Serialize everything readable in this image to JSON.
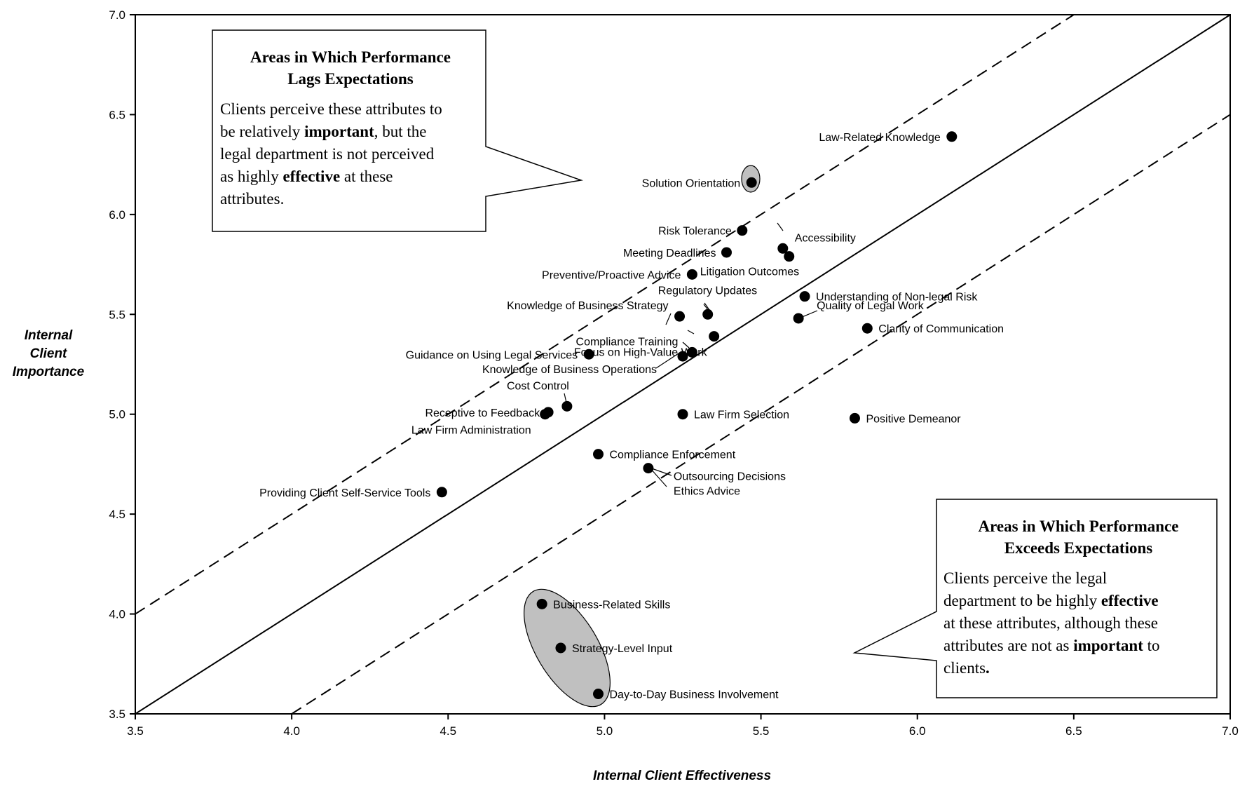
{
  "chart_data": {
    "type": "scatter",
    "xlabel": "Internal Client Effectiveness",
    "ylabel": "Internal Client Importance",
    "xlim": [
      3.5,
      7.0
    ],
    "ylim": [
      3.5,
      7.0
    ],
    "x_ticks": [
      "3.5",
      "4.0",
      "4.5",
      "5.0",
      "5.5",
      "6.0",
      "6.5",
      "7.0"
    ],
    "y_ticks": [
      "3.5",
      "4.0",
      "4.5",
      "5.0",
      "5.5",
      "6.0",
      "6.5",
      "7.0"
    ],
    "grid": false,
    "legend": "none",
    "reference_lines": [
      {
        "style": "solid",
        "from": [
          3.5,
          3.5
        ],
        "to": [
          7.0,
          7.0
        ]
      },
      {
        "style": "dashed",
        "from": [
          3.5,
          4.0
        ],
        "to": [
          6.5,
          7.0
        ]
      },
      {
        "style": "dashed",
        "from": [
          4.0,
          3.5
        ],
        "to": [
          7.0,
          6.5
        ]
      }
    ],
    "points": [
      {
        "label": "Law-Related Knowledge",
        "x": 6.11,
        "y": 6.39
      },
      {
        "label": "Solution Orientation",
        "x": 5.47,
        "y": 6.16
      },
      {
        "label": "Risk Tolerance",
        "x": 5.44,
        "y": 5.92
      },
      {
        "label": "Accessibility",
        "x": 5.57,
        "y": 5.83
      },
      {
        "label": "Meeting Deadlines",
        "x": 5.39,
        "y": 5.81
      },
      {
        "label": "Litigation Outcomes",
        "x": 5.59,
        "y": 5.79
      },
      {
        "label": "Preventive/Proactive Advice",
        "x": 5.28,
        "y": 5.7
      },
      {
        "label": "Understanding of Non-legal Risk",
        "x": 5.64,
        "y": 5.59
      },
      {
        "label": "Regulatory Updates",
        "x": 5.33,
        "y": 5.5
      },
      {
        "label": "Knowledge of Business Strategy",
        "x": 5.24,
        "y": 5.49
      },
      {
        "label": "Quality of Legal Work",
        "x": 5.62,
        "y": 5.48
      },
      {
        "label": "Clarity of Communication",
        "x": 5.84,
        "y": 5.43
      },
      {
        "label": "Focus on High-Value Work",
        "x": 5.35,
        "y": 5.39
      },
      {
        "label": "Compliance Training",
        "x": 5.28,
        "y": 5.31
      },
      {
        "label": "Guidance on Using Legal Services",
        "x": 4.95,
        "y": 5.3
      },
      {
        "label": "Knowledge of Business Operations",
        "x": 5.25,
        "y": 5.29
      },
      {
        "label": "Cost Control",
        "x": 4.88,
        "y": 5.04
      },
      {
        "label": "Receptive to Feedback",
        "x": 4.82,
        "y": 5.01
      },
      {
        "label": "Law Firm Administration",
        "x": 4.81,
        "y": 5.0
      },
      {
        "label": "Law Firm Selection",
        "x": 5.25,
        "y": 5.0
      },
      {
        "label": "Positive Demeanor",
        "x": 5.8,
        "y": 4.98
      },
      {
        "label": "Compliance Enforcement",
        "x": 4.98,
        "y": 4.8
      },
      {
        "label": "Outsourcing Decisions",
        "x": 5.14,
        "y": 4.73
      },
      {
        "label": "Ethics Advice",
        "x": 5.14,
        "y": 4.73
      },
      {
        "label": "Providing Client Self-Service Tools",
        "x": 4.48,
        "y": 4.61
      },
      {
        "label": "Business-Related Skills",
        "x": 4.8,
        "y": 4.05
      },
      {
        "label": "Strategy-Level Input",
        "x": 4.86,
        "y": 3.83
      },
      {
        "label": "Day-to-Day Business Involvement",
        "x": 4.98,
        "y": 3.6
      }
    ]
  },
  "callouts": {
    "lags": {
      "title_line1": "Areas in Which Performance",
      "title_line2": "Lags Expectations",
      "body": [
        "Clients perceive these attributes to",
        "be relatively ",
        "important",
        ", but the",
        "legal department is not perceived",
        "as highly ",
        "effective",
        " at these",
        "attributes."
      ]
    },
    "exceeds": {
      "title_line1": "Areas in Which Performance",
      "title_line2": "Exceeds Expectations",
      "body": [
        "Clients perceive the legal",
        "department to be highly ",
        "effective",
        "at these attributes, although these",
        "attributes are not as ",
        "important",
        " to",
        "clients",
        "."
      ]
    }
  }
}
